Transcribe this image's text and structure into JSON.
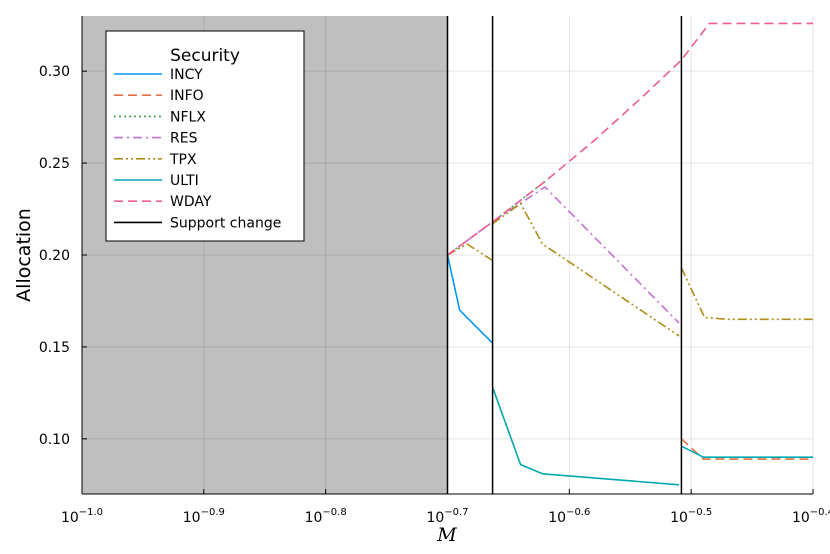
{
  "chart_data": {
    "type": "line",
    "xlabel": "M",
    "ylabel": "Allocation",
    "x_scale": "log10",
    "xlim_log10": [
      -1.0,
      -0.4
    ],
    "ylim": [
      0.07,
      0.33
    ],
    "x_ticks": [
      {
        "base": "10",
        "exp": "−1.0",
        "log10": -1.0
      },
      {
        "base": "10",
        "exp": "−0.9",
        "log10": -0.9
      },
      {
        "base": "10",
        "exp": "−0.8",
        "log10": -0.8
      },
      {
        "base": "10",
        "exp": "−0.7",
        "log10": -0.7
      },
      {
        "base": "10",
        "exp": "−0.6",
        "log10": -0.6
      },
      {
        "base": "10",
        "exp": "−0.5",
        "log10": -0.5
      },
      {
        "base": "10",
        "exp": "−0.4",
        "log10": -0.4
      }
    ],
    "y_ticks": [
      {
        "label": "0.10",
        "value": 0.1
      },
      {
        "label": "0.15",
        "value": 0.15
      },
      {
        "label": "0.20",
        "value": 0.2
      },
      {
        "label": "0.25",
        "value": 0.25
      },
      {
        "label": "0.30",
        "value": 0.3
      }
    ],
    "grid": true,
    "legend": {
      "title": "Security",
      "position": "top-left"
    },
    "shaded_region_log10": [
      -1.0,
      -0.7
    ],
    "shade_color": "#bfbfbf",
    "support_change_log10": [
      -0.7,
      -0.663,
      -0.508
    ],
    "series": [
      {
        "name": "INCY",
        "color": "#009AFA",
        "dash": "",
        "segments": [
          [
            [
              -0.7,
              0.2
            ],
            [
              -0.69,
              0.17
            ],
            [
              -0.663,
              0.152
            ]
          ]
        ]
      },
      {
        "name": "INFO",
        "color": "#E36F47",
        "dash": "9,5",
        "segments": [
          [
            [
              -0.508,
              0.1
            ],
            [
              -0.49,
              0.089
            ],
            [
              -0.4,
              0.089
            ]
          ]
        ]
      },
      {
        "name": "NFLX",
        "color": "#3EA44E",
        "dash": "2,3",
        "segments": [
          [
            [
              -0.7,
              0.2
            ],
            [
              -0.663,
              0.218
            ],
            [
              -0.62,
              0.24
            ]
          ]
        ]
      },
      {
        "name": "RES",
        "color": "#C371D2",
        "dash": "9,4,2,4",
        "segments": [
          [
            [
              -0.7,
              0.2
            ],
            [
              -0.663,
              0.218
            ],
            [
              -0.62,
              0.237
            ],
            [
              -0.51,
              0.163
            ]
          ]
        ]
      },
      {
        "name": "TPX",
        "color": "#AC8D18",
        "dash": "9,3,2,3,2,3",
        "segments": [
          [
            [
              -0.7,
              0.2
            ],
            [
              -0.684,
              0.206
            ],
            [
              -0.663,
              0.197
            ]
          ],
          [
            [
              -0.663,
              0.217
            ],
            [
              -0.64,
              0.228
            ],
            [
              -0.622,
              0.206
            ],
            [
              -0.51,
              0.156
            ]
          ],
          [
            [
              -0.508,
              0.193
            ],
            [
              -0.489,
              0.166
            ],
            [
              -0.47,
              0.165
            ],
            [
              -0.4,
              0.165
            ]
          ]
        ]
      },
      {
        "name": "ULTI",
        "color": "#00A9AD",
        "dash": "",
        "segments": [
          [
            [
              -0.663,
              0.128
            ],
            [
              -0.64,
              0.086
            ],
            [
              -0.622,
              0.081
            ],
            [
              -0.51,
              0.075
            ]
          ],
          [
            [
              -0.508,
              0.096
            ],
            [
              -0.49,
              0.09
            ],
            [
              -0.4,
              0.09
            ]
          ]
        ]
      },
      {
        "name": "WDAY",
        "color": "#ED5E93",
        "dash": "9,5",
        "segments": [
          [
            [
              -0.7,
              0.2
            ],
            [
              -0.663,
              0.218
            ],
            [
              -0.62,
              0.24
            ],
            [
              -0.58,
              0.262
            ],
            [
              -0.54,
              0.286
            ],
            [
              -0.508,
              0.306
            ],
            [
              -0.485,
              0.326
            ],
            [
              -0.4,
              0.326
            ]
          ]
        ]
      },
      {
        "name": "Support change",
        "color": "#000000",
        "dash": "",
        "legend_only": true,
        "segments": []
      }
    ]
  }
}
